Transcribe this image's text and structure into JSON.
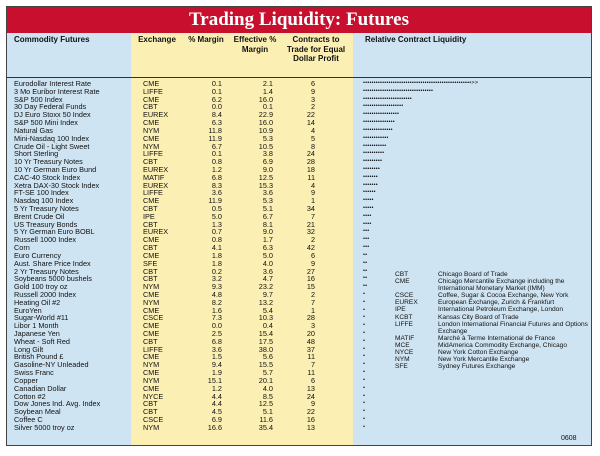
{
  "title": "Trading Liquidity: Futures",
  "headers": {
    "commodity": "Commodity Futures",
    "exchange": "Exchange",
    "margin": "% Margin",
    "effective": "Effective % Margin",
    "contracts": "Contracts to Trade for Equal Dollar Profit",
    "relative": "Relative Contract Liquidity"
  },
  "rows": [
    {
      "name": "Eurodollar Interest Rate",
      "exchange": "CME",
      "margin": "0.1",
      "effective": "2.1",
      "contracts": "6",
      "dots": "•••••••••••••••••••••••••••••••••••••••••••••••••••>>"
    },
    {
      "name": "3 Mo Euribor Interest Rate",
      "exchange": "LIFFE",
      "margin": "0.1",
      "effective": "1.4",
      "contracts": "9",
      "dots": "•••••••••••••••••••••••••••••••••"
    },
    {
      "name": "S&P 500 Index",
      "exchange": "CME",
      "margin": "6.2",
      "effective": "16.0",
      "contracts": "3",
      "dots": "•••••••••••••••••••••••"
    },
    {
      "name": "30 Day Federal Funds",
      "exchange": "CBT",
      "margin": "0.0",
      "effective": "0.1",
      "contracts": "2",
      "dots": "•••••••••••••••••••"
    },
    {
      "name": "DJ Euro Stoxx 50 Index",
      "exchange": "EUREX",
      "margin": "8.4",
      "effective": "22.9",
      "contracts": "22",
      "dots": "•••••••••••••••••"
    },
    {
      "name": "S&P 500 Mini Index",
      "exchange": "CME",
      "margin": "6.3",
      "effective": "16.0",
      "contracts": "14",
      "dots": "•••••••••••••••"
    },
    {
      "name": "Natural Gas",
      "exchange": "NYM",
      "margin": "11.8",
      "effective": "10.9",
      "contracts": "4",
      "dots": "••••••••••••••"
    },
    {
      "name": "Mini-Nasdaq 100 Index",
      "exchange": "CME",
      "margin": "11.9",
      "effective": "5.3",
      "contracts": "5",
      "dots": "••••••••••••"
    },
    {
      "name": "Crude Oil - Light Sweet",
      "exchange": "NYM",
      "margin": "6.7",
      "effective": "10.5",
      "contracts": "8",
      "dots": "•••••••••••"
    },
    {
      "name": "Short Sterling",
      "exchange": "LIFFE",
      "margin": "0.1",
      "effective": "3.8",
      "contracts": "24",
      "dots": "••••••••••"
    },
    {
      "name": "10 Yr Treasury Notes",
      "exchange": "CBT",
      "margin": "0.8",
      "effective": "6.9",
      "contracts": "28",
      "dots": "•••••••••"
    },
    {
      "name": "10 Yr German Euro Bund",
      "exchange": "EUREX",
      "margin": "1.2",
      "effective": "9.0",
      "contracts": "18",
      "dots": "••••••••"
    },
    {
      "name": "CAC-40 Stock Index",
      "exchange": "MATIF",
      "margin": "6.8",
      "effective": "12.5",
      "contracts": "11",
      "dots": "•••••••"
    },
    {
      "name": "Xetra DAX-30 Stock Index",
      "exchange": "EUREX",
      "margin": "8.3",
      "effective": "15.3",
      "contracts": "4",
      "dots": "•••••••"
    },
    {
      "name": "FT-SE 100 Index",
      "exchange": "LIFFE",
      "margin": "3.6",
      "effective": "3.6",
      "contracts": "9",
      "dots": "••••••"
    },
    {
      "name": "Nasdaq 100 Index",
      "exchange": "CME",
      "margin": "11.9",
      "effective": "5.3",
      "contracts": "1",
      "dots": "•••••"
    },
    {
      "name": "5 Yr Treasury Notes",
      "exchange": "CBT",
      "margin": "0.5",
      "effective": "5.1",
      "contracts": "34",
      "dots": "•••••"
    },
    {
      "name": "Brent Crude Oil",
      "exchange": "IPE",
      "margin": "5.0",
      "effective": "6.7",
      "contracts": "7",
      "dots": "••••"
    },
    {
      "name": "US Treasury Bonds",
      "exchange": "CBT",
      "margin": "1.3",
      "effective": "8.1",
      "contracts": "21",
      "dots": "••••"
    },
    {
      "name": "5 Yr German Euro BOBL",
      "exchange": "EUREX",
      "margin": "0.7",
      "effective": "9.0",
      "contracts": "32",
      "dots": "•••"
    },
    {
      "name": "Russell 1000 Index",
      "exchange": "CME",
      "margin": "0.8",
      "effective": "1.7",
      "contracts": "2",
      "dots": "•••"
    },
    {
      "name": "Corn",
      "exchange": "CBT",
      "margin": "4.1",
      "effective": "6.3",
      "contracts": "42",
      "dots": "•••"
    },
    {
      "name": "Euro Currency",
      "exchange": "CME",
      "margin": "1.8",
      "effective": "5.0",
      "contracts": "6",
      "dots": "••"
    },
    {
      "name": "Aust. Share Price Index",
      "exchange": "SFE",
      "margin": "1.8",
      "effective": "4.0",
      "contracts": "9",
      "dots": "••"
    },
    {
      "name": "2 Yr Treasury Notes",
      "exchange": "CBT",
      "margin": "0.2",
      "effective": "3.6",
      "contracts": "27",
      "dots": "••"
    },
    {
      "name": "Soybeans 5000 bushels",
      "exchange": "CBT",
      "margin": "3.2",
      "effective": "4.7",
      "contracts": "16",
      "dots": "••"
    },
    {
      "name": "Gold 100 troy oz",
      "exchange": "NYM",
      "margin": "9.3",
      "effective": "23.2",
      "contracts": "15",
      "dots": "••"
    },
    {
      "name": "Russell 2000 Index",
      "exchange": "CME",
      "margin": "4.8",
      "effective": "9.7",
      "contracts": "2",
      "dots": "•"
    },
    {
      "name": "Heating Oil #2",
      "exchange": "NYM",
      "margin": "8.2",
      "effective": "13.2",
      "contracts": "7",
      "dots": "•"
    },
    {
      "name": "EuroYen",
      "exchange": "CME",
      "margin": "1.6",
      "effective": "5.4",
      "contracts": "1",
      "dots": "•"
    },
    {
      "name": "Sugar-World #11",
      "exchange": "CSCE",
      "margin": "7.3",
      "effective": "10.3",
      "contracts": "28",
      "dots": "•"
    },
    {
      "name": "Libor 1 Month",
      "exchange": "CME",
      "margin": "0.0",
      "effective": "0.4",
      "contracts": "3",
      "dots": "•"
    },
    {
      "name": "Japanese Yen",
      "exchange": "CME",
      "margin": "2.5",
      "effective": "15.4",
      "contracts": "20",
      "dots": "•"
    },
    {
      "name": "Wheat - Soft Red",
      "exchange": "CBT",
      "margin": "6.8",
      "effective": "17.5",
      "contracts": "48",
      "dots": "•"
    },
    {
      "name": "Long Gilt",
      "exchange": "LIFFE",
      "margin": "3.6",
      "effective": "38.0",
      "contracts": "37",
      "dots": "•"
    },
    {
      "name": "British Pound £",
      "exchange": "CME",
      "margin": "1.5",
      "effective": "5.6",
      "contracts": "11",
      "dots": "•"
    },
    {
      "name": "Gasoline-NY Unleaded",
      "exchange": "NYM",
      "margin": "9.4",
      "effective": "15.5",
      "contracts": "7",
      "dots": "•"
    },
    {
      "name": "Swiss Franc",
      "exchange": "CME",
      "margin": "1.9",
      "effective": "5.7",
      "contracts": "11",
      "dots": "•"
    },
    {
      "name": "Copper",
      "exchange": "NYM",
      "margin": "15.1",
      "effective": "20.1",
      "contracts": "6",
      "dots": "•"
    },
    {
      "name": "Canadian Dollar",
      "exchange": "CME",
      "margin": "1.2",
      "effective": "4.0",
      "contracts": "13",
      "dots": "•"
    },
    {
      "name": "Cotton #2",
      "exchange": "NYCE",
      "margin": "4.4",
      "effective": "8.5",
      "contracts": "24",
      "dots": "•"
    },
    {
      "name": "Dow Jones Ind. Avg. Index",
      "exchange": "CBT",
      "margin": "4.4",
      "effective": "12.5",
      "contracts": "9",
      "dots": "•"
    },
    {
      "name": "Soybean Meal",
      "exchange": "CBT",
      "margin": "4.5",
      "effective": "5.1",
      "contracts": "22",
      "dots": "•"
    },
    {
      "name": "Coffee C",
      "exchange": "CSCE",
      "margin": "6.9",
      "effective": "11.6",
      "contracts": "16",
      "dots": "•"
    },
    {
      "name": "Silver 5000 troy oz",
      "exchange": "NYM",
      "margin": "16.6",
      "effective": "35.4",
      "contracts": "13",
      "dots": "•"
    }
  ],
  "legend": [
    {
      "abbr": "CBT",
      "def": "Chicago Board of Trade"
    },
    {
      "abbr": "CME",
      "def": "Chicago Mercantile Exchange including the International Monetary Market (IMM)"
    },
    {
      "abbr": "CSCE",
      "def": "Coffee, Sugar & Cocoa Exchange, New York"
    },
    {
      "abbr": "EUREX",
      "def": "European Exchange, Zurich & Frankfurt"
    },
    {
      "abbr": "IPE",
      "def": "International Petroleum Exchange, London"
    },
    {
      "abbr": "KCBT",
      "def": "Kansas City Board of Trade"
    },
    {
      "abbr": "LIFFE",
      "def": "London International Financial Futures and Options Exchange"
    },
    {
      "abbr": "MATIF",
      "def": "Marché à Terme International de France"
    },
    {
      "abbr": "MCE",
      "def": "MidAmerica Commodity Exchange, Chicago"
    },
    {
      "abbr": "NYCE",
      "def": "New York Cotton Exchange"
    },
    {
      "abbr": "NYM",
      "def": "New York Mercantile Exchange"
    },
    {
      "abbr": "SFE",
      "def": "Sydney Futures Exchange"
    }
  ],
  "code": "0608"
}
